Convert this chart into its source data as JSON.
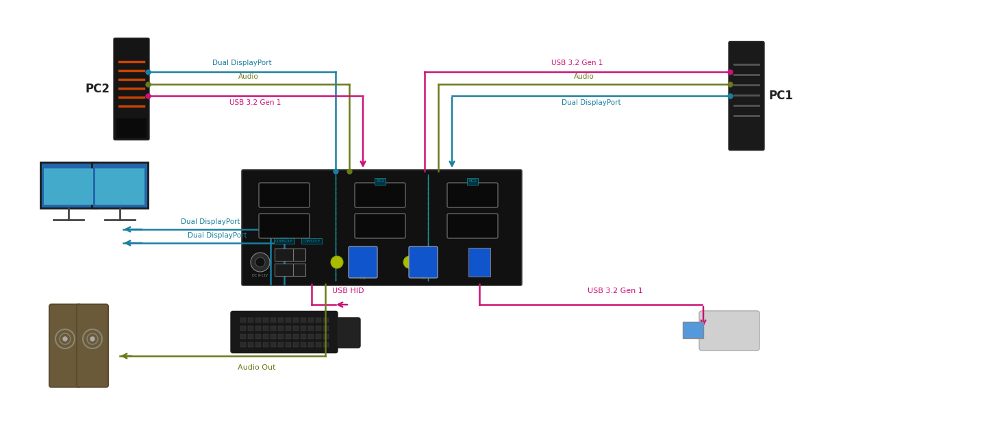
{
  "bg_color": "#ffffff",
  "colors": {
    "blue": "#1a7fa0",
    "olive": "#6b7a1a",
    "pink": "#cc1177",
    "teal": "#1a9090",
    "dark": "#1a1a1a",
    "kvm_bg": "#111111"
  },
  "labels": {
    "pc2": "PC2",
    "pc1": "PC1",
    "usb_hid": "USB HID",
    "audio_out": "Audio Out",
    "usb32_pc2": "USB 3.2 Gen 1",
    "usb32_pc1": "USB 3.2 Gen 1",
    "usb32_bottom": "USB 3.2 Gen 1",
    "audio_pc2": "Audio",
    "audio_pc1": "Audio",
    "dual_dp_pc2": "Dual DisplayPort",
    "dual_dp_pc1": "Dual DisplayPort",
    "dual_dp_mon1": "Dual DisplayPort",
    "dual_dp_mon2": "Dual DisplayPort"
  },
  "lw": 1.8
}
